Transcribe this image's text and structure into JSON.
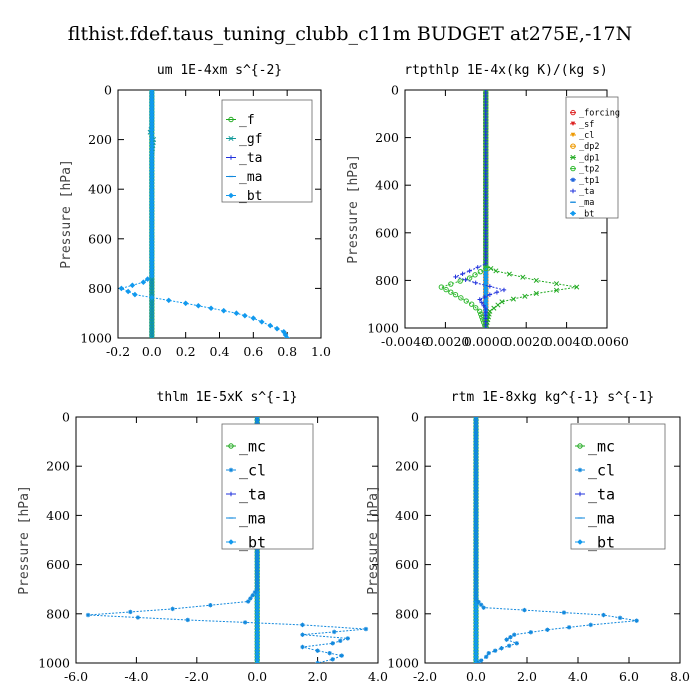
{
  "title": "flthist.fdef.taus_tuning_clubb_c11m  BUDGET at275E,-17N",
  "chart_data": [
    {
      "type": "line",
      "title": "um  1E-4xm s^{-2}",
      "ylabel": "Pressure [hPa]",
      "xlim": [
        -0.2,
        1.0
      ],
      "ylim": [
        1000,
        0
      ],
      "xticks": [
        "-0.2",
        "0.0",
        "0.2",
        "0.4",
        "0.6",
        "0.8",
        "1.0"
      ],
      "yticks": [
        "0",
        "200",
        "400",
        "600",
        "800",
        "1000"
      ],
      "legend_position": "top-right",
      "series": [
        {
          "name": "_f",
          "color": "#22aa22",
          "marker": "circle",
          "points": [
            [
              0.0,
              0
            ],
            [
              0.0,
              1000
            ]
          ]
        },
        {
          "name": "_gf",
          "color": "#119999",
          "marker": "x",
          "points": [
            [
              0.0,
              0
            ],
            [
              0.0,
              150
            ],
            [
              -0.01,
              170
            ],
            [
              0.01,
              200
            ],
            [
              0.0,
              260
            ],
            [
              0.0,
              1000
            ]
          ]
        },
        {
          "name": "_ta",
          "color": "#2233dd",
          "marker": "plus",
          "points": [
            [
              0.0,
              0
            ],
            [
              0.0,
              1000
            ]
          ]
        },
        {
          "name": "_ma",
          "color": "#1188dd",
          "marker": "dash",
          "points": [
            [
              0.0,
              0
            ],
            [
              0.0,
              1000
            ]
          ]
        },
        {
          "name": "_bt",
          "color": "#1199ee",
          "marker": "diamond",
          "points": [
            [
              0.0,
              0
            ],
            [
              0.0,
              200
            ],
            [
              0.0,
              400
            ],
            [
              0.0,
              600
            ],
            [
              0.0,
              700
            ],
            [
              0.0,
              750
            ],
            [
              -0.05,
              775
            ],
            [
              -0.18,
              800
            ],
            [
              -0.1,
              825
            ],
            [
              0.2,
              860
            ],
            [
              0.35,
              880
            ],
            [
              0.5,
              900
            ],
            [
              0.6,
              920
            ],
            [
              0.7,
              950
            ],
            [
              0.78,
              975
            ],
            [
              0.8,
              1000
            ]
          ]
        }
      ]
    },
    {
      "type": "line",
      "title": "rtpthlp  1E-4x(kg K)/(kg s)",
      "ylabel": "Pressure [hPa]",
      "xlim": [
        -0.004,
        0.006
      ],
      "ylim": [
        1000,
        0
      ],
      "xticks": [
        "-0.0040",
        "-0.0020",
        "0.0000",
        "0.0020",
        "0.0040",
        "0.0060"
      ],
      "yticks": [
        "0",
        "200",
        "400",
        "600",
        "800",
        "1000"
      ],
      "legend_position": "top-right",
      "series": [
        {
          "name": "_forcing",
          "color": "#dd2222",
          "marker": "circle",
          "points": [
            [
              0.0,
              0
            ],
            [
              0.0,
              1000
            ]
          ]
        },
        {
          "name": "_sf",
          "color": "#dd2222",
          "marker": "tri",
          "points": [
            [
              0.0,
              0
            ],
            [
              0.0,
              1000
            ]
          ]
        },
        {
          "name": "_cl",
          "color": "#ee9900",
          "marker": "tri",
          "points": [
            [
              0.0,
              0
            ],
            [
              0.0,
              1000
            ]
          ]
        },
        {
          "name": "_dp2",
          "color": "#ee9900",
          "marker": "circle",
          "points": [
            [
              0.0,
              0
            ],
            [
              0.0,
              1000
            ]
          ]
        },
        {
          "name": "_dp1",
          "color": "#22aa22",
          "marker": "x",
          "points": [
            [
              0.0,
              0
            ],
            [
              0.0,
              740
            ],
            [
              0.0005,
              760
            ],
            [
              0.0025,
              800
            ],
            [
              0.0045,
              828
            ],
            [
              0.0025,
              855
            ],
            [
              0.0008,
              890
            ],
            [
              0.0002,
              930
            ],
            [
              0.0,
              1000
            ]
          ]
        },
        {
          "name": "_tp2",
          "color": "#33bb33",
          "marker": "circle",
          "points": [
            [
              0.0,
              0
            ],
            [
              0.0,
              750
            ],
            [
              -0.0008,
              790
            ],
            [
              -0.0022,
              828
            ],
            [
              -0.0015,
              860
            ],
            [
              -0.0007,
              900
            ],
            [
              -0.0003,
              930
            ],
            [
              0.0,
              1000
            ]
          ]
        },
        {
          "name": "_tp1",
          "color": "#2266dd",
          "marker": "star",
          "points": [
            [
              0.0,
              0
            ],
            [
              0.0,
              1000
            ]
          ]
        },
        {
          "name": "_ta",
          "color": "#2233dd",
          "marker": "plus",
          "points": [
            [
              0.0,
              0
            ],
            [
              0.0,
              730
            ],
            [
              -0.0008,
              760
            ],
            [
              -0.0015,
              785
            ],
            [
              -0.0005,
              810
            ],
            [
              0.0009,
              840
            ],
            [
              0.0002,
              860
            ],
            [
              -0.0003,
              880
            ],
            [
              0.0,
              920
            ],
            [
              0.0,
              1000
            ]
          ]
        },
        {
          "name": "_ma",
          "color": "#1188dd",
          "marker": "dash",
          "points": [
            [
              0.0,
              0
            ],
            [
              0.0,
              1000
            ]
          ]
        },
        {
          "name": "_bt",
          "color": "#1199ee",
          "marker": "diamond",
          "points": [
            [
              0.0,
              0
            ],
            [
              0.0,
              1000
            ]
          ]
        }
      ]
    },
    {
      "type": "line",
      "title": "thlm  1E-5xK s^{-1}",
      "ylabel": "Pressure [hPa]",
      "xlim": [
        -6.0,
        4.0
      ],
      "ylim": [
        1000,
        0
      ],
      "xticks": [
        "-6.0",
        "-4.0",
        "-2.0",
        "0.0",
        "2.0",
        "4.0"
      ],
      "yticks": [
        "0",
        "200",
        "400",
        "600",
        "800",
        "1000"
      ],
      "legend_position": "top-right",
      "series": [
        {
          "name": "_mc",
          "color": "#22aa22",
          "marker": "circle",
          "points": [
            [
              0.0,
              0
            ],
            [
              0.0,
              1000
            ]
          ]
        },
        {
          "name": "_cl",
          "color": "#1188dd",
          "marker": "star",
          "points": [
            [
              0.0,
              0
            ],
            [
              0.0,
              700
            ],
            [
              -0.3,
              750
            ],
            [
              -2.8,
              780
            ],
            [
              -5.6,
              805
            ],
            [
              -2.3,
              825
            ],
            [
              1.5,
              845
            ],
            [
              3.6,
              862
            ],
            [
              1.5,
              885
            ],
            [
              3.0,
              900
            ],
            [
              2.5,
              920
            ],
            [
              1.5,
              935
            ],
            [
              2.0,
              950
            ],
            [
              2.8,
              970
            ],
            [
              2.5,
              985
            ],
            [
              2.0,
              1000
            ]
          ]
        },
        {
          "name": "_ta",
          "color": "#2233dd",
          "marker": "plus",
          "points": [
            [
              0.0,
              0
            ],
            [
              0.0,
              1000
            ]
          ]
        },
        {
          "name": "_ma",
          "color": "#1188dd",
          "marker": "dash",
          "points": [
            [
              0.0,
              0
            ],
            [
              0.0,
              1000
            ]
          ]
        },
        {
          "name": "_bt",
          "color": "#1199ee",
          "marker": "diamond",
          "points": [
            [
              0.0,
              0
            ],
            [
              0.0,
              1000
            ]
          ]
        }
      ]
    },
    {
      "type": "line",
      "title": "rtm  1E-8xkg kg^{-1} s^{-1}",
      "ylabel": "Pressure [hPa]",
      "xlim": [
        -2.0,
        8.0
      ],
      "ylim": [
        1000,
        0
      ],
      "xticks": [
        "-2.0",
        "0.0",
        "2.0",
        "4.0",
        "6.0",
        "8.0"
      ],
      "yticks": [
        "0",
        "200",
        "400",
        "600",
        "800",
        "1000"
      ],
      "legend_position": "top-right",
      "series": [
        {
          "name": "_mc",
          "color": "#22aa22",
          "marker": "circle",
          "points": [
            [
              0.0,
              0
            ],
            [
              0.0,
              1000
            ]
          ]
        },
        {
          "name": "_cl",
          "color": "#1188dd",
          "marker": "star",
          "points": [
            [
              0.0,
              0
            ],
            [
              0.0,
              740
            ],
            [
              0.3,
              775
            ],
            [
              1.9,
              785
            ],
            [
              5.0,
              805
            ],
            [
              6.3,
              828
            ],
            [
              4.5,
              845
            ],
            [
              2.8,
              865
            ],
            [
              1.5,
              885
            ],
            [
              1.2,
              905
            ],
            [
              1.6,
              920
            ],
            [
              1.0,
              940
            ],
            [
              0.5,
              960
            ],
            [
              0.4,
              975
            ],
            [
              0.2,
              990
            ],
            [
              0.1,
              1000
            ]
          ]
        },
        {
          "name": "_ta",
          "color": "#2233dd",
          "marker": "plus",
          "points": [
            [
              0.0,
              0
            ],
            [
              0.0,
              1000
            ]
          ]
        },
        {
          "name": "_ma",
          "color": "#1188dd",
          "marker": "dash",
          "points": [
            [
              0.0,
              0
            ],
            [
              0.0,
              1000
            ]
          ]
        },
        {
          "name": "_bt",
          "color": "#1199ee",
          "marker": "diamond",
          "points": [
            [
              0.0,
              0
            ],
            [
              0.0,
              1000
            ]
          ]
        }
      ]
    }
  ]
}
